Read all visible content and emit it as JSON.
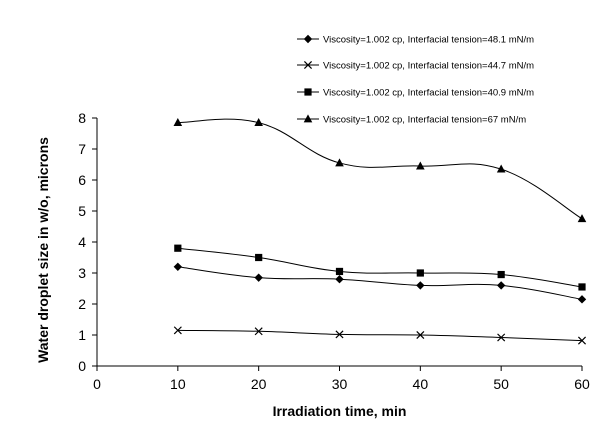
{
  "chart_data": {
    "type": "line",
    "xlabel": "Irradiation time, min",
    "ylabel": "Water droplet size in w/o, microns",
    "xlim": [
      0,
      60
    ],
    "ylim": [
      0,
      8
    ],
    "xticks": [
      0,
      10,
      20,
      30,
      40,
      50,
      60
    ],
    "yticks": [
      0,
      1,
      2,
      3,
      4,
      5,
      6,
      7,
      8
    ],
    "grid": false,
    "legend_position": "top-right",
    "x": [
      10,
      20,
      30,
      40,
      50,
      60
    ],
    "series": [
      {
        "name": "Viscosity=1.002 cp, Interfacial tension=48.1 mN/m",
        "marker": "diamond",
        "values": [
          3.2,
          2.85,
          2.8,
          2.6,
          2.6,
          2.15
        ]
      },
      {
        "name": "Viscosity=1.002 cp, Interfacial tension=44.7 mN/m",
        "marker": "x",
        "values": [
          1.15,
          1.12,
          1.02,
          1.0,
          0.92,
          0.82
        ]
      },
      {
        "name": "Viscosity=1.002 cp, Interfacial tension=40.9 mN/m",
        "marker": "square",
        "values": [
          3.8,
          3.5,
          3.05,
          3.0,
          2.95,
          2.55
        ]
      },
      {
        "name": "Viscosity=1.002 cp, Interfacial tension=67 mN/m",
        "marker": "triangle",
        "values": [
          7.85,
          7.85,
          6.55,
          6.45,
          6.35,
          4.75
        ]
      }
    ],
    "line_color": "#000000"
  }
}
